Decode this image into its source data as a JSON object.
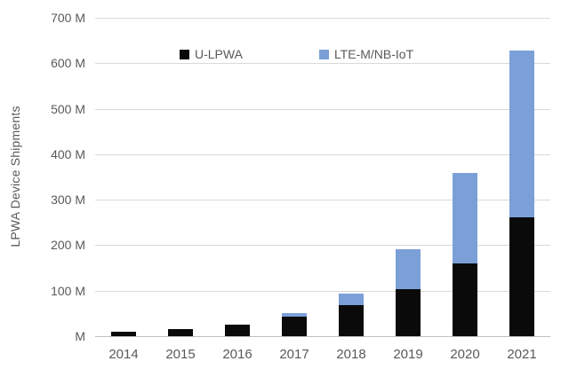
{
  "colors": {
    "ulpwa_bar": "#0a0a0a",
    "lte_bar": "#7ba0d8",
    "gridline": "#d9d9d9",
    "axis_line": "#bfbfbf",
    "text": "#595959",
    "background": "#ffffff"
  },
  "y_axis": {
    "title": "LPWA Device Shipments",
    "tick_labels": [
      "700 M",
      "600 M",
      "500 M",
      "400 M",
      "300 M",
      "200 M",
      "100 M",
      "M"
    ]
  },
  "legend": {
    "items": [
      {
        "label": "U-LPWA",
        "color": "#0a0a0a"
      },
      {
        "label": "LTE-M/NB-IoT",
        "color": "#7ba0d8"
      }
    ]
  },
  "chart_data": {
    "type": "bar",
    "stacked": true,
    "title": "",
    "xlabel": "",
    "ylabel": "LPWA Device Shipments",
    "categories": [
      "2014",
      "2015",
      "2016",
      "2017",
      "2018",
      "2019",
      "2020",
      "2021"
    ],
    "series": [
      {
        "name": "U-LPWA",
        "color": "#0a0a0a",
        "values": [
          10,
          15,
          25,
          42,
          68,
          103,
          159,
          261
        ]
      },
      {
        "name": "LTE-M/NB-IoT",
        "color": "#7ba0d8",
        "values": [
          0,
          0,
          0,
          8,
          25,
          89,
          199,
          366
        ]
      }
    ],
    "totals": [
      10,
      15,
      25,
      50,
      93,
      192,
      358,
      627
    ],
    "ylim": [
      0,
      700
    ],
    "ytick_step": 100,
    "ytick_labels_top_to_bottom": [
      "700 M",
      "600 M",
      "500 M",
      "400 M",
      "300 M",
      "200 M",
      "100 M",
      "M"
    ],
    "grid": true,
    "legend_position": "top-inside"
  }
}
